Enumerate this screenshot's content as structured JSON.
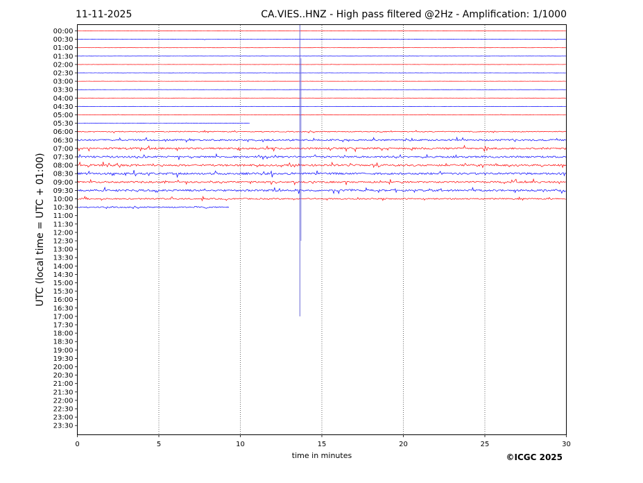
{
  "header": {
    "date": "11-11-2025",
    "title": "CA.VIES..HNZ - High pass filtered @2Hz - Amplification: 1/1000"
  },
  "footer": {
    "copyright": "©ICGC 2025"
  },
  "chart_data": {
    "type": "line",
    "title": "CA.VIES..HNZ - High pass filtered @2Hz - Amplification: 1/1000",
    "xlabel": "time in minutes",
    "ylabel": "UTC (local time = UTC + 01:00)",
    "xlim": [
      0,
      30
    ],
    "x_ticks": [
      0,
      5,
      10,
      15,
      20,
      25,
      30
    ],
    "grid": "vertical dotted lines at 5 minute intervals",
    "colors": {
      "even_rows": "#ff0000",
      "odd_rows": "#0000ff"
    },
    "rows": [
      {
        "label": "00:00",
        "end_min": 30,
        "activity": 0.05
      },
      {
        "label": "00:30",
        "end_min": 30,
        "activity": 0.08
      },
      {
        "label": "01:00",
        "end_min": 30,
        "activity": 0.04
      },
      {
        "label": "01:30",
        "end_min": 30,
        "activity": 0.04
      },
      {
        "label": "02:00",
        "end_min": 30,
        "activity": 0.05
      },
      {
        "label": "02:30",
        "end_min": 30,
        "activity": 0.04
      },
      {
        "label": "03:00",
        "end_min": 30,
        "activity": 0.04
      },
      {
        "label": "03:30",
        "end_min": 30,
        "activity": 0.04
      },
      {
        "label": "04:00",
        "end_min": 30,
        "activity": 0.04
      },
      {
        "label": "04:30",
        "end_min": 30,
        "activity": 0.06
      },
      {
        "label": "05:00",
        "end_min": 30,
        "activity": 0.1
      },
      {
        "label": "05:30",
        "end_min": 10.6,
        "activity": 0.1
      },
      {
        "label": "06:00",
        "end_min": 30,
        "activity": 0.25
      },
      {
        "label": "06:30",
        "end_min": 30,
        "activity": 0.45
      },
      {
        "label": "07:00",
        "end_min": 30,
        "activity": 0.5
      },
      {
        "label": "07:30",
        "end_min": 30,
        "activity": 0.5
      },
      {
        "label": "08:00",
        "end_min": 30,
        "activity": 0.5
      },
      {
        "label": "08:30",
        "end_min": 30,
        "activity": 0.55
      },
      {
        "label": "09:00",
        "end_min": 30,
        "activity": 0.45
      },
      {
        "label": "09:30",
        "end_min": 30,
        "activity": 0.5
      },
      {
        "label": "10:00",
        "end_min": 30,
        "activity": 0.35
      },
      {
        "label": "10:30",
        "end_min": 9.3,
        "activity": 0.3
      },
      {
        "label": "11:00"
      },
      {
        "label": "11:30"
      },
      {
        "label": "12:00"
      },
      {
        "label": "12:30"
      },
      {
        "label": "13:00"
      },
      {
        "label": "13:30"
      },
      {
        "label": "14:00"
      },
      {
        "label": "14:30"
      },
      {
        "label": "15:00"
      },
      {
        "label": "15:30"
      },
      {
        "label": "16:00"
      },
      {
        "label": "16:30"
      },
      {
        "label": "17:00"
      },
      {
        "label": "17:30"
      },
      {
        "label": "18:00"
      },
      {
        "label": "18:30"
      },
      {
        "label": "19:00"
      },
      {
        "label": "19:30"
      },
      {
        "label": "20:00"
      },
      {
        "label": "20:30"
      },
      {
        "label": "21:00"
      },
      {
        "label": "21:30"
      },
      {
        "label": "22:00"
      },
      {
        "label": "22:30"
      },
      {
        "label": "23:00"
      },
      {
        "label": "23:30"
      }
    ],
    "events": [
      {
        "minute": 13.65,
        "from_row": "00:00",
        "to_row": "17:00",
        "color": "#4444cc"
      },
      {
        "minute": 13.72,
        "from_row": "02:00",
        "to_row": "12:30",
        "color": "#6666dd"
      }
    ]
  }
}
